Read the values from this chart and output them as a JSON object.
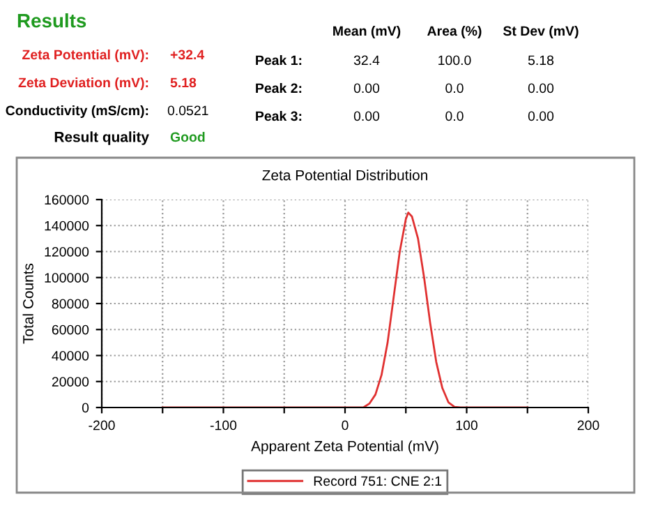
{
  "chart_data": {
    "type": "line",
    "title": "Zeta Potential Distribution",
    "xlabel": "Apparent Zeta Potential (mV)",
    "ylabel": "Total Counts",
    "x": [
      -150,
      -100,
      -50,
      0,
      15,
      20,
      25,
      30,
      35,
      40,
      45,
      50,
      52,
      55,
      60,
      65,
      70,
      75,
      80,
      85,
      90,
      95,
      100,
      150
    ],
    "series": [
      {
        "name": "Record 751: CNE 2:1",
        "color": "#e03030",
        "values": [
          0,
          0,
          0,
          0,
          0,
          3000,
          10000,
          25000,
          50000,
          85000,
          120000,
          145000,
          150000,
          147000,
          130000,
          100000,
          65000,
          35000,
          15000,
          4000,
          500,
          0,
          0,
          0
        ]
      }
    ],
    "xlim": [
      -200,
      200
    ],
    "xticks": [
      -200,
      {
        "value": -150,
        "label": null
      },
      -100,
      {
        "value": -50,
        "label": null
      },
      0,
      {
        "value": 50,
        "label": null
      },
      100,
      {
        "value": 150,
        "label": null
      },
      200
    ],
    "ylim": [
      0,
      160000
    ],
    "yticks": [
      0,
      20000,
      40000,
      60000,
      80000,
      100000,
      120000,
      140000,
      160000
    ],
    "grid": true,
    "legend": "bottom",
    "marker": "none",
    "line_style": "solid",
    "annotations": [
      "Results",
      "Zeta Potential (mV):",
      "+32.4",
      "Zeta Deviation (mV):",
      "5.18",
      "Conductivity (mS/cm):",
      "0.0521",
      "Result quality",
      "Good",
      "Mean (mV)",
      "Area (%)",
      "St Dev (mV)",
      "Peak 1:",
      "32.4",
      "100.0",
      "5.18",
      "Peak 2:",
      "0.00",
      "0.0",
      "0.00",
      "Peak 3:",
      "0.00",
      "0.0",
      "0.00"
    ]
  }
}
